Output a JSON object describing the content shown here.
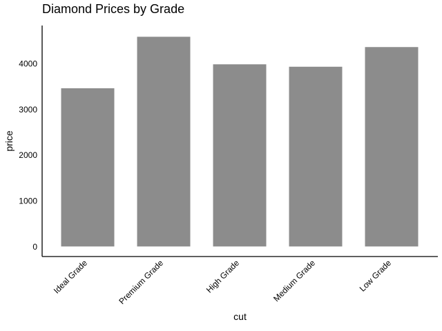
{
  "chart_data": {
    "type": "bar",
    "title": "Diamond Prices by Grade",
    "xlabel": "cut",
    "ylabel": "price",
    "categories": [
      "Ideal Grade",
      "Premium Grade",
      "High Grade",
      "Medium Grade",
      "Low Grade"
    ],
    "values": [
      3458,
      4584,
      3982,
      3929,
      4359
    ],
    "yticks": [
      0,
      1000,
      2000,
      3000,
      4000
    ],
    "ylim": [
      -220,
      4830
    ],
    "bar_color": "#8c8c8c",
    "grid": false,
    "legend": "none"
  }
}
